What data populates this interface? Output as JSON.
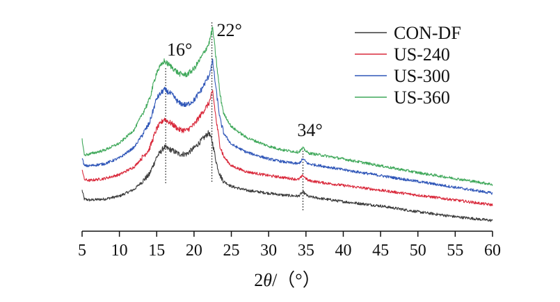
{
  "chart_data": {
    "type": "line",
    "title": "",
    "xlabel": "2θ/（°）",
    "xlabel_parts": {
      "pre": "2",
      "theta": "θ",
      "post": "/（°）"
    },
    "ylabel": "",
    "xlim": [
      5,
      60
    ],
    "ylim": [
      0,
      10
    ],
    "xticks": [
      5,
      10,
      15,
      20,
      25,
      30,
      35,
      40,
      45,
      50,
      55,
      60
    ],
    "grid": false,
    "legend_position": "top-right",
    "peaks": [
      {
        "x": 16.2,
        "label": "16°"
      },
      {
        "x": 22.4,
        "label": "22°"
      },
      {
        "x": 34.6,
        "label": "34°"
      }
    ],
    "series": [
      {
        "name": "CON-DF",
        "color": "#3a3a3a",
        "x": [
          5,
          5.3,
          6,
          8,
          10,
          12,
          14,
          15,
          16,
          17,
          18,
          19,
          20,
          21,
          22,
          22.5,
          23,
          23.5,
          24,
          25,
          27,
          30,
          32,
          34,
          34.6,
          35.3,
          37,
          40,
          45,
          50,
          55,
          60
        ],
        "values": [
          1.7,
          1.25,
          1.2,
          1.25,
          1.4,
          1.75,
          2.5,
          3.4,
          3.9,
          3.75,
          3.55,
          3.55,
          3.85,
          4.25,
          4.65,
          4.1,
          3.1,
          2.45,
          2.15,
          1.9,
          1.7,
          1.55,
          1.45,
          1.4,
          1.62,
          1.38,
          1.28,
          1.12,
          0.9,
          0.6,
          0.35,
          0.15
        ]
      },
      {
        "name": "US-240",
        "color": "#d9283a",
        "x": [
          5,
          5.3,
          6,
          8,
          10,
          12,
          14,
          15,
          16,
          17,
          18,
          19,
          20,
          21,
          22,
          22.5,
          23,
          23.5,
          24,
          25,
          27,
          30,
          32,
          34,
          34.6,
          35.3,
          37,
          40,
          45,
          50,
          55,
          60
        ],
        "values": [
          2.8,
          2.25,
          2.2,
          2.3,
          2.5,
          2.9,
          3.8,
          4.85,
          5.35,
          5.1,
          4.8,
          4.75,
          5.05,
          5.6,
          6.15,
          6.75,
          5.2,
          3.95,
          3.4,
          2.95,
          2.65,
          2.45,
          2.35,
          2.25,
          2.45,
          2.2,
          2.1,
          1.95,
          1.7,
          1.45,
          1.2,
          0.95
        ]
      },
      {
        "name": "US-300",
        "color": "#2f56b8",
        "x": [
          5,
          5.3,
          6,
          8,
          10,
          12,
          14,
          15,
          16,
          17,
          18,
          19,
          20,
          21,
          22,
          22.5,
          23,
          23.5,
          24,
          25,
          27,
          30,
          32,
          34,
          34.6,
          35.3,
          37,
          40,
          45,
          50,
          55,
          60
        ],
        "values": [
          3.35,
          2.95,
          2.95,
          3.05,
          3.35,
          3.9,
          5.1,
          6.4,
          6.85,
          6.6,
          6.15,
          6.05,
          6.3,
          6.85,
          7.55,
          8.3,
          6.7,
          5.3,
          4.6,
          4.05,
          3.65,
          3.3,
          3.15,
          3.05,
          3.3,
          3.05,
          2.95,
          2.75,
          2.45,
          2.15,
          1.85,
          1.55
        ]
      },
      {
        "name": "US-360",
        "color": "#3fa85a",
        "x": [
          5,
          5.3,
          6,
          8,
          10,
          12,
          14,
          15,
          16,
          17,
          18,
          19,
          20,
          21,
          22,
          22.5,
          23,
          23.5,
          24,
          25,
          27,
          30,
          32,
          34,
          34.6,
          35.3,
          37,
          40,
          45,
          50,
          55,
          60
        ],
        "values": [
          4.3,
          3.5,
          3.55,
          3.75,
          4.1,
          4.8,
          6.3,
          7.75,
          8.3,
          8.0,
          7.65,
          7.6,
          7.9,
          8.5,
          9.2,
          10.0,
          8.25,
          6.55,
          5.6,
          4.95,
          4.4,
          3.95,
          3.75,
          3.65,
          3.85,
          3.6,
          3.5,
          3.3,
          2.95,
          2.6,
          2.3,
          2.0
        ]
      }
    ]
  }
}
